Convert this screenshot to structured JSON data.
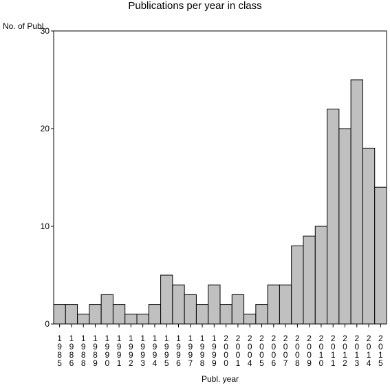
{
  "chart_data": {
    "type": "bar",
    "title": "Publications per year in class",
    "xlabel": "Publ. year",
    "ylabel": "No. of Publ.",
    "ylim": [
      0,
      30
    ],
    "yticks": [
      "0",
      "10",
      "20",
      "30"
    ],
    "categories": [
      "1985",
      "1986",
      "1988",
      "1989",
      "1990",
      "1991",
      "1992",
      "1993",
      "1994",
      "1995",
      "1996",
      "1997",
      "1998",
      "1999",
      "2000",
      "2001",
      "2004",
      "2005",
      "2006",
      "2007",
      "2008",
      "2009",
      "2010",
      "2011",
      "2012",
      "2013",
      "2014",
      "2015"
    ],
    "values": [
      2,
      2,
      1,
      2,
      3,
      2,
      1,
      1,
      2,
      5,
      4,
      3,
      2,
      4,
      2,
      3,
      1,
      2,
      4,
      4,
      8,
      9,
      10,
      22,
      20,
      25,
      18,
      14
    ],
    "grid": false,
    "bar_color": "#c0c0c0",
    "edge_color": "#000000"
  }
}
